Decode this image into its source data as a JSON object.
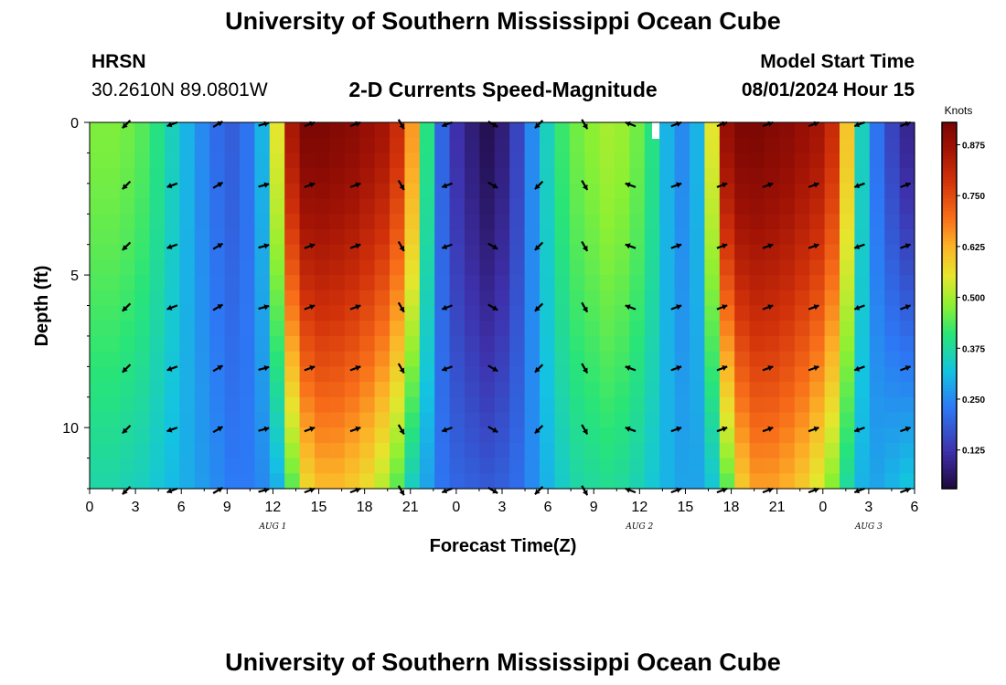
{
  "header": {
    "title": "University of Southern Mississippi Ocean Cube",
    "station": "HRSN",
    "coords": "30.2610N  89.0801W",
    "product": "2-D Currents Speed-Magnitude",
    "model_label": "Model Start Time",
    "model_time": "08/01/2024 Hour 15"
  },
  "footer": {
    "title": "University of Southern Mississippi Ocean Cube"
  },
  "chart_data": {
    "type": "heatmap",
    "title": "2-D Currents Speed-Magnitude",
    "xlabel": "Forecast Time(Z)",
    "ylabel": "Depth (ft)",
    "x_hours": [
      0,
      54
    ],
    "x_tick_labels": [
      "0",
      "3",
      "6",
      "9",
      "12",
      "15",
      "18",
      "21",
      "0",
      "3",
      "6",
      "9",
      "12",
      "15",
      "18",
      "21",
      "0",
      "3",
      "6"
    ],
    "date_labels": [
      {
        "hour": 12,
        "text": "AUG 1"
      },
      {
        "hour": 36,
        "text": "AUG 2"
      },
      {
        "hour": 51,
        "text": "AUG 3"
      }
    ],
    "y_range": [
      0,
      12
    ],
    "y_ticks": [
      0,
      5,
      10
    ],
    "colorbar": {
      "label": "Knots",
      "range": [
        0.03,
        0.93
      ],
      "ticks": [
        "0.875",
        "0.750",
        "0.625",
        "0.500",
        "0.375",
        "0.250",
        "0.125"
      ],
      "tick_values": [
        0.875,
        0.75,
        0.625,
        0.5,
        0.375,
        0.25,
        0.125
      ]
    },
    "speed_profile_surface": [
      0.47,
      0.47,
      0.46,
      0.44,
      0.4,
      0.35,
      0.3,
      0.25,
      0.21,
      0.19,
      0.22,
      0.3,
      0.55,
      0.85,
      0.92,
      0.92,
      0.91,
      0.9,
      0.88,
      0.86,
      0.8,
      0.65,
      0.4,
      0.2,
      0.12,
      0.08,
      0.05,
      0.08,
      0.15,
      0.25,
      0.35,
      0.42,
      0.46,
      0.48,
      0.5,
      0.49,
      0.46,
      0.4,
      0.3,
      0.25,
      0.3,
      0.55,
      0.88,
      0.92,
      0.92,
      0.91,
      0.9,
      0.88,
      0.86,
      0.8,
      0.6,
      0.35,
      0.22,
      0.15,
      0.1
    ],
    "speed_profile_bottom": [
      0.37,
      0.37,
      0.36,
      0.35,
      0.33,
      0.31,
      0.29,
      0.27,
      0.25,
      0.23,
      0.23,
      0.25,
      0.3,
      0.45,
      0.58,
      0.62,
      0.62,
      0.6,
      0.57,
      0.52,
      0.45,
      0.35,
      0.28,
      0.22,
      0.2,
      0.19,
      0.18,
      0.19,
      0.21,
      0.25,
      0.3,
      0.34,
      0.37,
      0.38,
      0.39,
      0.38,
      0.36,
      0.33,
      0.3,
      0.28,
      0.28,
      0.33,
      0.45,
      0.6,
      0.65,
      0.65,
      0.63,
      0.6,
      0.55,
      0.48,
      0.38,
      0.3,
      0.28,
      0.3,
      0.32
    ],
    "vector_hours": [
      3,
      6,
      9,
      12,
      15,
      18,
      21,
      24,
      27,
      30,
      33,
      36,
      39,
      42,
      45,
      48,
      51,
      54
    ],
    "vector_depths": [
      0,
      2,
      4,
      6,
      8,
      10,
      12
    ],
    "vector_directions_deg": [
      225,
      200,
      30,
      15,
      20,
      20,
      300,
      200,
      330,
      225,
      300,
      160,
      20,
      20,
      20,
      20,
      200,
      20
    ]
  }
}
